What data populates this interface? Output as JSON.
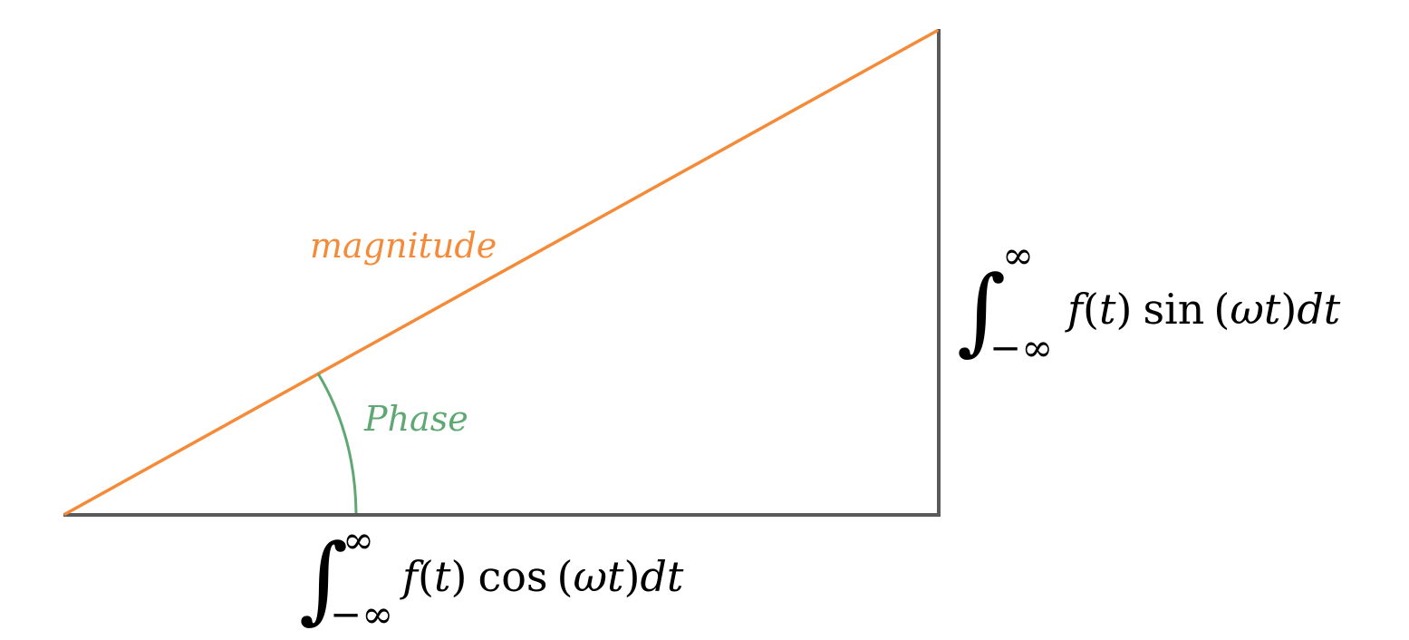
{
  "colors": {
    "background": "#ffffff",
    "adjacent_side": "#5a5a5a",
    "opposite_side": "#5a5a5a",
    "hypotenuse": "#f58a38",
    "phase_arc": "#5fa874",
    "math_text": "#000000"
  },
  "labels": {
    "hypotenuse": "magnitude",
    "angle": "Phase"
  },
  "cos_integral": {
    "integral_sign": "∫",
    "upper_limit": "∞",
    "lower_limit": "−∞",
    "f": "f",
    "open_paren": "(",
    "t": "t",
    "close_paren": ")",
    "func": "cos",
    "open_paren2": "(",
    "omega": "ω",
    "t2": "t",
    "close_paren2": ")",
    "dt": "dt"
  },
  "sin_integral": {
    "integral_sign": "∫",
    "upper_limit": "∞",
    "lower_limit": "−∞",
    "f": "f",
    "open_paren": "(",
    "t": "t",
    "close_paren": ")",
    "func": "sin",
    "open_paren2": "(",
    "omega": "ω",
    "t2": "t",
    "close_paren2": ")",
    "dt": "dt"
  }
}
